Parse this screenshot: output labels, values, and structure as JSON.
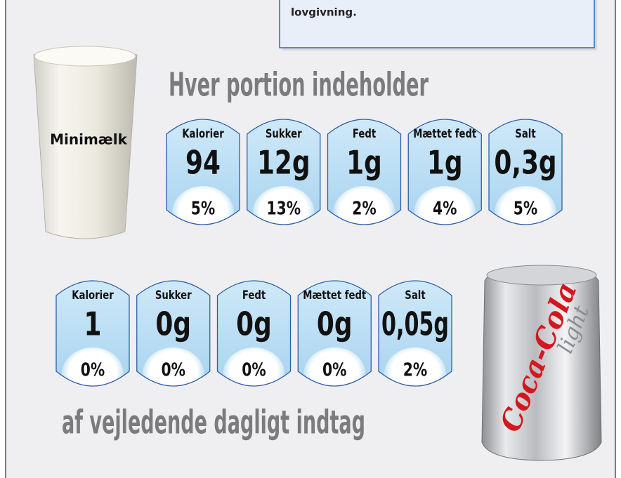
{
  "callout": {
    "text": "lovgivning."
  },
  "header": {
    "title": "Hver portion indeholder"
  },
  "footer": {
    "text": "af vejledende dagligt indtag"
  },
  "products": [
    {
      "name": "Minimælk",
      "labels": [
        {
          "nutrient": "Kalorier",
          "amount": "94",
          "percent": "5%"
        },
        {
          "nutrient": "Sukker",
          "amount": "12g",
          "percent": "13%"
        },
        {
          "nutrient": "Fedt",
          "amount": "1g",
          "percent": "2%"
        },
        {
          "nutrient": "Mættet fedt",
          "amount": "1g",
          "percent": "4%"
        },
        {
          "nutrient": "Salt",
          "amount": "0,3g",
          "percent": "5%"
        }
      ]
    },
    {
      "brand": "Coca-Cola",
      "variant": "light",
      "labels": [
        {
          "nutrient": "Kalorier",
          "amount": "1",
          "percent": "0%"
        },
        {
          "nutrient": "Sukker",
          "amount": "0g",
          "percent": "0%"
        },
        {
          "nutrient": "Fedt",
          "amount": "0g",
          "percent": "0%"
        },
        {
          "nutrient": "Mættet fedt",
          "amount": "0g",
          "percent": "0%"
        },
        {
          "nutrient": "Salt",
          "amount": "0,05g",
          "percent": "2%"
        }
      ]
    }
  ]
}
